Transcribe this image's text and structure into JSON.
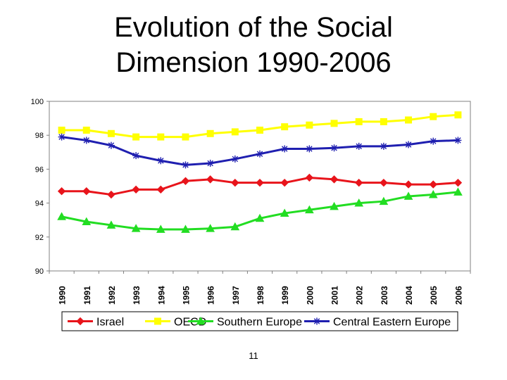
{
  "slide": {
    "title_line1": "Evolution of the Social",
    "title_line2": "Dimension 1990-2006",
    "page_number": "11"
  },
  "chart_data": {
    "type": "line",
    "title": "",
    "xlabel": "",
    "ylabel": "",
    "x": [
      "1990",
      "1991",
      "1992",
      "1993",
      "1994",
      "1995",
      "1996",
      "1997",
      "1998",
      "1999",
      "2000",
      "2001",
      "2002",
      "2003",
      "2004",
      "2005",
      "2006"
    ],
    "ylim": [
      90,
      100
    ],
    "yticks": [
      90,
      92,
      94,
      96,
      98,
      100
    ],
    "grid": "none",
    "legend_position": "bottom",
    "series": [
      {
        "name": "Israel",
        "color": "#e8141b",
        "marker": "diamond",
        "values": [
          94.7,
          94.7,
          94.5,
          94.8,
          94.8,
          95.3,
          95.4,
          95.2,
          95.2,
          95.2,
          95.5,
          95.4,
          95.2,
          95.2,
          95.1,
          95.1,
          95.2
        ]
      },
      {
        "name": "OECD",
        "color": "#ffff00",
        "marker": "square",
        "values": [
          98.3,
          98.3,
          98.1,
          97.9,
          97.9,
          97.9,
          98.1,
          98.2,
          98.3,
          98.5,
          98.6,
          98.7,
          98.8,
          98.8,
          98.9,
          99.1,
          99.2
        ]
      },
      {
        "name": "Southern Europe",
        "color": "#22dd22",
        "marker": "triangle",
        "values": [
          93.2,
          92.9,
          92.7,
          92.5,
          92.45,
          92.45,
          92.5,
          92.6,
          93.1,
          93.4,
          93.6,
          93.8,
          94.0,
          94.1,
          94.4,
          94.5,
          94.65
        ]
      },
      {
        "name": "Central Eastern Europe",
        "color": "#1f1fb0",
        "marker": "asterisk",
        "values": [
          97.9,
          97.7,
          97.4,
          96.8,
          96.5,
          96.25,
          96.35,
          96.6,
          96.9,
          97.2,
          97.2,
          97.25,
          97.35,
          97.35,
          97.45,
          97.65,
          97.7
        ]
      }
    ]
  }
}
